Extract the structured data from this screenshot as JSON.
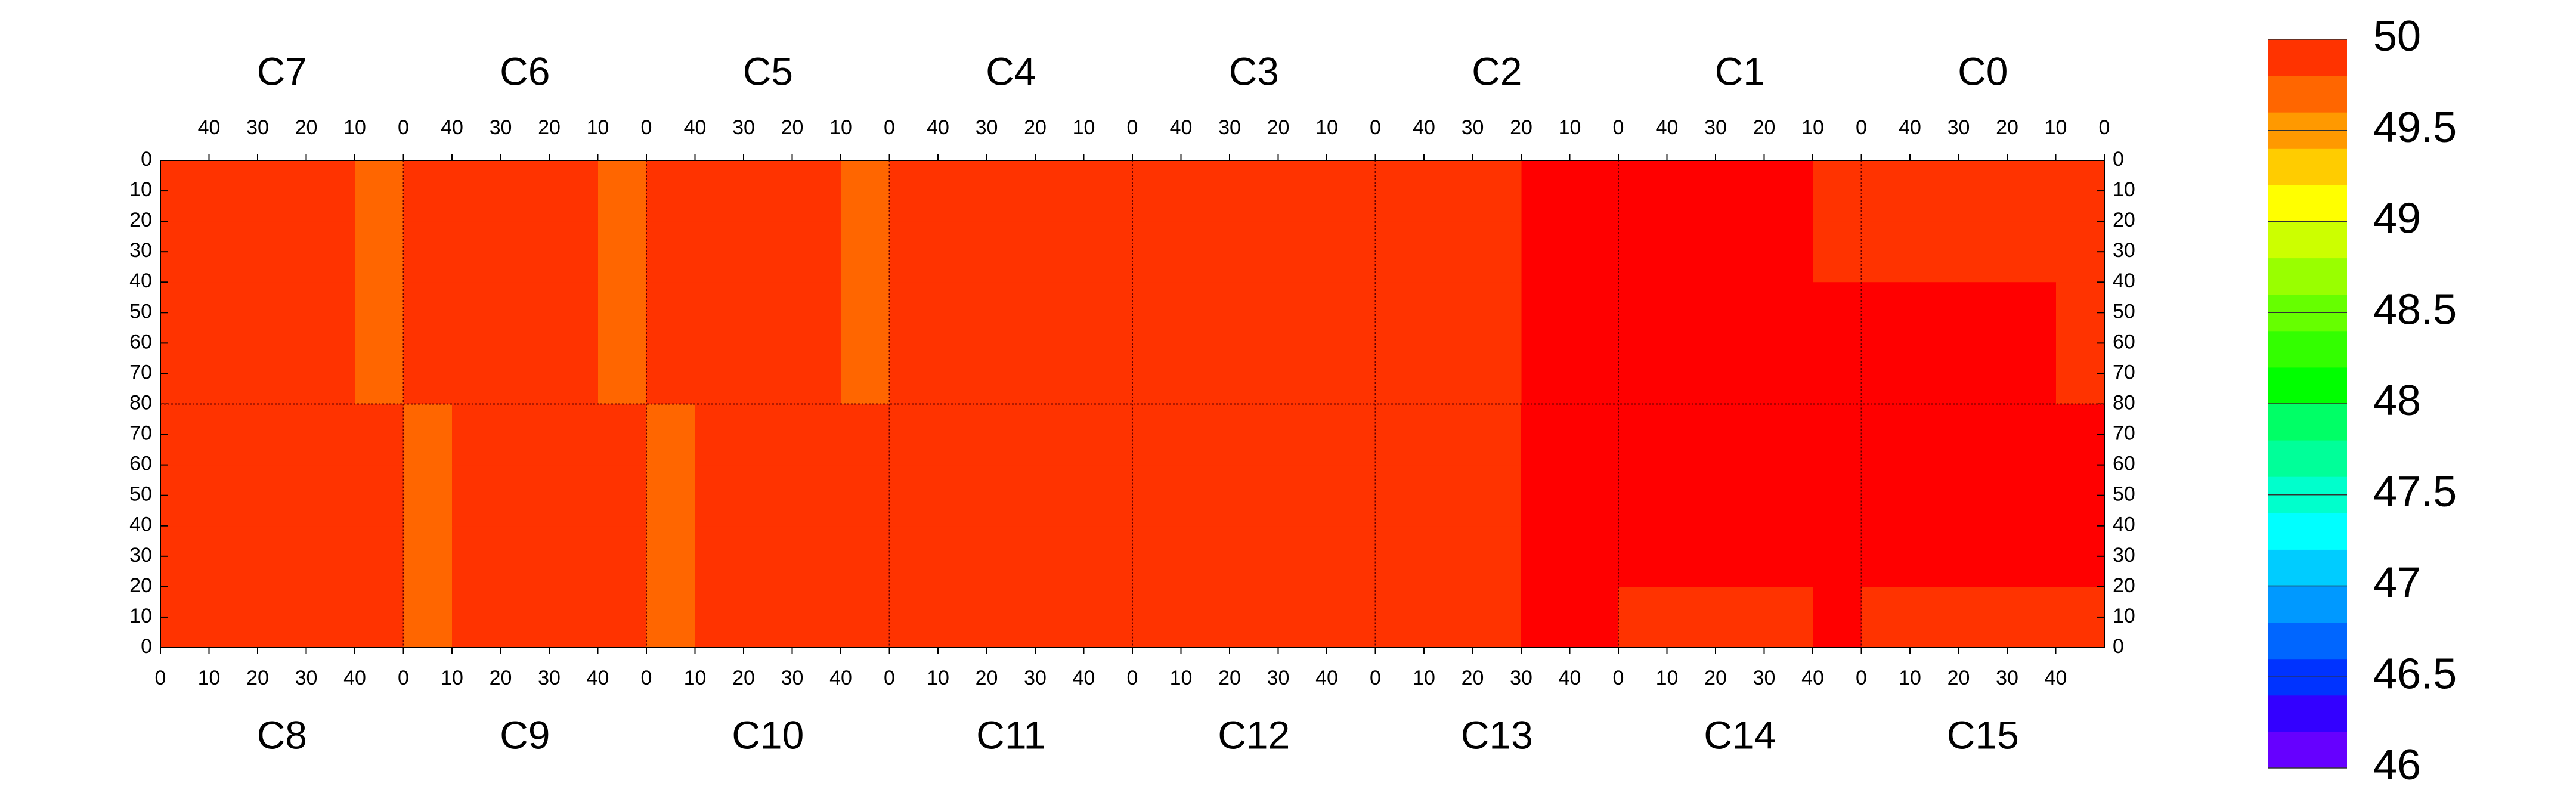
{
  "chart_data": {
    "type": "heatmap",
    "rows": [
      {
        "xlim": [
          50,
          0
        ],
        "ylim": [
          0,
          80
        ],
        "xticks": [
          0,
          10,
          20,
          30,
          40
        ],
        "yticks": [
          0,
          10,
          20,
          30,
          40,
          50,
          60,
          70,
          80
        ],
        "chips": [
          {
            "name": "C7",
            "values": [
              [
                49.7,
                49.9,
                49.9,
                49.9,
                49.9
              ],
              [
                49.7,
                49.9,
                49.9,
                49.9,
                49.9
              ],
              [
                49.7,
                49.9,
                49.9,
                49.9,
                49.9
              ],
              [
                49.7,
                49.9,
                49.9,
                49.9,
                49.9
              ]
            ]
          },
          {
            "name": "C6",
            "values": [
              [
                49.7,
                49.9,
                49.9,
                49.9,
                49.9
              ],
              [
                49.7,
                49.9,
                49.9,
                49.9,
                49.9
              ],
              [
                49.7,
                49.9,
                49.9,
                49.9,
                49.9
              ],
              [
                49.7,
                49.9,
                49.9,
                49.9,
                49.9
              ]
            ]
          },
          {
            "name": "C5",
            "values": [
              [
                49.7,
                49.9,
                49.9,
                49.9,
                49.9
              ],
              [
                49.7,
                49.9,
                49.9,
                49.9,
                49.9
              ],
              [
                49.7,
                49.9,
                49.9,
                49.9,
                49.9
              ],
              [
                49.7,
                49.9,
                49.9,
                49.9,
                49.9
              ]
            ]
          },
          {
            "name": "C4",
            "values": [
              [
                49.8,
                49.9,
                49.9,
                49.9,
                49.9
              ],
              [
                49.8,
                49.9,
                49.9,
                49.9,
                49.9
              ],
              [
                49.8,
                49.9,
                49.9,
                49.9,
                49.9
              ],
              [
                49.8,
                49.9,
                49.9,
                49.9,
                49.9
              ]
            ]
          },
          {
            "name": "C3",
            "values": [
              [
                49.8,
                49.9,
                49.9,
                49.9,
                49.9
              ],
              [
                49.8,
                49.9,
                49.9,
                49.9,
                49.9
              ],
              [
                49.8,
                49.9,
                49.9,
                49.9,
                49.9
              ],
              [
                49.8,
                49.9,
                49.9,
                49.9,
                49.9
              ]
            ]
          },
          {
            "name": "C2",
            "values": [
              [
                50,
                50,
                49.9,
                49.9,
                49.9
              ],
              [
                50,
                50,
                49.9,
                49.9,
                49.9
              ],
              [
                50,
                50,
                49.9,
                49.9,
                49.9
              ],
              [
                50,
                50,
                49.9,
                49.9,
                49.9
              ]
            ]
          },
          {
            "name": "C1",
            "values": [
              [
                49.9,
                50,
                50,
                50,
                50
              ],
              [
                49.9,
                50,
                50,
                50,
                50
              ],
              [
                50,
                50,
                50,
                50,
                50
              ],
              [
                50,
                50,
                50,
                50,
                50
              ]
            ]
          },
          {
            "name": "C0",
            "values": [
              [
                49.9,
                49.9,
                49.9,
                49.9,
                49.9
              ],
              [
                49.9,
                49.9,
                49.9,
                49.9,
                49.9
              ],
              [
                49.9,
                50,
                50,
                50,
                50
              ],
              [
                49.9,
                50,
                50,
                50,
                50
              ]
            ]
          }
        ]
      },
      {
        "xlim": [
          0,
          50
        ],
        "ylim": [
          80,
          0
        ],
        "xticks": [
          0,
          10,
          20,
          30,
          40
        ],
        "yticks": [
          0,
          10,
          20,
          30,
          40,
          50,
          60,
          70
        ],
        "chips": [
          {
            "name": "C8",
            "values": [
              [
                49.9,
                49.9,
                49.9,
                49.9,
                49.9
              ],
              [
                49.9,
                49.9,
                49.9,
                49.9,
                49.9
              ],
              [
                49.9,
                49.9,
                49.9,
                49.9,
                49.9
              ],
              [
                49.9,
                49.9,
                49.9,
                49.9,
                49.9
              ]
            ]
          },
          {
            "name": "C9",
            "values": [
              [
                49.7,
                49.9,
                49.9,
                49.9,
                49.9
              ],
              [
                49.7,
                49.9,
                49.9,
                49.9,
                49.9
              ],
              [
                49.7,
                49.9,
                49.9,
                49.9,
                49.9
              ],
              [
                49.7,
                49.9,
                49.9,
                49.9,
                49.9
              ]
            ]
          },
          {
            "name": "C10",
            "values": [
              [
                49.7,
                49.9,
                49.9,
                49.9,
                49.9
              ],
              [
                49.7,
                49.9,
                49.9,
                49.9,
                49.9
              ],
              [
                49.7,
                49.9,
                49.9,
                49.9,
                49.9
              ],
              [
                49.7,
                49.9,
                49.9,
                49.9,
                49.9
              ]
            ]
          },
          {
            "name": "C11",
            "values": [
              [
                49.8,
                49.9,
                49.9,
                49.9,
                49.9
              ],
              [
                49.8,
                49.9,
                49.9,
                49.9,
                49.9
              ],
              [
                49.8,
                49.9,
                49.9,
                49.9,
                49.9
              ],
              [
                49.8,
                49.9,
                49.9,
                49.9,
                49.9
              ]
            ]
          },
          {
            "name": "C12",
            "values": [
              [
                49.8,
                49.9,
                49.9,
                49.9,
                49.9
              ],
              [
                49.8,
                49.9,
                49.9,
                49.9,
                49.9
              ],
              [
                49.8,
                49.9,
                49.9,
                49.9,
                49.9
              ],
              [
                49.8,
                49.9,
                49.9,
                49.9,
                49.9
              ]
            ]
          },
          {
            "name": "C13",
            "values": [
              [
                49.8,
                49.9,
                49.9,
                50,
                50
              ],
              [
                49.8,
                49.9,
                49.9,
                50,
                50
              ],
              [
                49.8,
                49.9,
                49.9,
                50,
                50
              ],
              [
                49.8,
                49.9,
                49.9,
                50,
                50
              ]
            ]
          },
          {
            "name": "C14",
            "values": [
              [
                49.9,
                49.9,
                49.9,
                49.9,
                50
              ],
              [
                50,
                50,
                50,
                50,
                50
              ],
              [
                50,
                50,
                50,
                50,
                50
              ],
              [
                50,
                50,
                50,
                50,
                50
              ]
            ]
          },
          {
            "name": "C15",
            "values": [
              [
                49.9,
                49.9,
                49.9,
                49.9,
                49.9
              ],
              [
                50,
                50,
                50,
                50,
                50
              ],
              [
                50,
                50,
                50,
                50,
                50
              ],
              [
                50,
                50,
                50,
                50,
                50
              ]
            ]
          }
        ]
      }
    ],
    "zlim": [
      46,
      50
    ],
    "zticks": [
      46,
      46.5,
      47,
      47.5,
      48,
      48.5,
      49,
      49.5,
      50
    ],
    "colors": [
      "#6600ff",
      "#3300ff",
      "#0033ff",
      "#0066ff",
      "#0099ff",
      "#00ccff",
      "#00ffff",
      "#00ffcc",
      "#00ff99",
      "#00ff66",
      "#00ff00",
      "#33ff00",
      "#66ff00",
      "#99ff00",
      "#ccff00",
      "#ffff00",
      "#ffcc00",
      "#ff9900",
      "#ff6600",
      "#ff3300",
      "#ff0000"
    ]
  }
}
